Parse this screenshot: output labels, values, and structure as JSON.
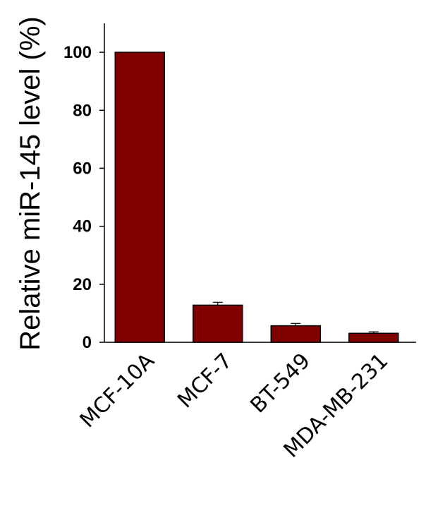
{
  "chart_data": {
    "type": "bar",
    "title": "",
    "xlabel": "",
    "ylabel": "Relative miR-145 level (%)",
    "categories": [
      "MCF-10A",
      "MCF-7",
      "BT-549",
      "MDA-MB-231"
    ],
    "values": [
      100,
      12.8,
      5.7,
      3.1
    ],
    "error": [
      0,
      1.0,
      0.8,
      0.5
    ],
    "ylim": [
      0,
      110
    ],
    "yticks": [
      "0",
      "20",
      "40",
      "60",
      "80",
      "100"
    ],
    "ytick_values": [
      0,
      20,
      40,
      60,
      80,
      100
    ],
    "grid": false,
    "bar_color": "#800000"
  }
}
